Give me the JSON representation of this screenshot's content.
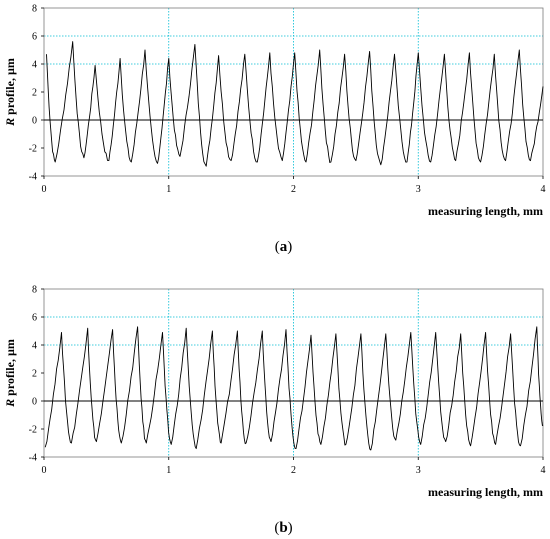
{
  "chart_data": [
    {
      "type": "line",
      "caption": "(a)",
      "xlabel": "measuring length, mm",
      "ylabel_italic": "R",
      "ylabel_rest": " profile, µm",
      "xlim": [
        0,
        4
      ],
      "ylim": [
        -4,
        8
      ],
      "xticks": [
        "0",
        "1",
        "2",
        "3",
        "4"
      ],
      "yticks": [
        "-4",
        "-2",
        "0",
        "2",
        "4",
        "6",
        "8"
      ],
      "grid": "dotted cyan at x = 1, 2, 3 and y = 4, 6",
      "colors": {
        "line": "#000000",
        "grid": "#00bcd4",
        "zero_line": "#000000"
      },
      "series": [
        {
          "peaks": [
            [
              0.02,
              4.7
            ],
            [
              0.23,
              5.6
            ],
            [
              0.41,
              3.9
            ],
            [
              0.61,
              4.4
            ],
            [
              0.81,
              5.0
            ],
            [
              1.0,
              4.4
            ],
            [
              1.21,
              5.4
            ],
            [
              1.4,
              4.6
            ],
            [
              1.61,
              4.7
            ],
            [
              1.81,
              4.8
            ],
            [
              2.01,
              4.8
            ],
            [
              2.21,
              5.0
            ],
            [
              2.41,
              4.7
            ],
            [
              2.61,
              4.9
            ],
            [
              2.81,
              4.7
            ],
            [
              3.0,
              4.8
            ],
            [
              3.21,
              4.7
            ],
            [
              3.41,
              4.8
            ],
            [
              3.61,
              4.7
            ],
            [
              3.81,
              5.0
            ],
            [
              4.0,
              2.4
            ]
          ],
          "valleys": [
            [
              0.09,
              -3.0
            ],
            [
              0.32,
              -2.7
            ],
            [
              0.52,
              -2.9
            ],
            [
              0.7,
              -3.0
            ],
            [
              0.91,
              -3.1
            ],
            [
              1.09,
              -2.6
            ],
            [
              1.3,
              -3.3
            ],
            [
              1.5,
              -2.9
            ],
            [
              1.71,
              -3.0
            ],
            [
              1.91,
              -2.9
            ],
            [
              2.1,
              -3.0
            ],
            [
              2.3,
              -3.0
            ],
            [
              2.5,
              -2.9
            ],
            [
              2.7,
              -3.2
            ],
            [
              2.91,
              -3.0
            ],
            [
              3.1,
              -3.0
            ],
            [
              3.3,
              -2.9
            ],
            [
              3.5,
              -3.0
            ],
            [
              3.7,
              -2.9
            ],
            [
              3.9,
              -2.9
            ]
          ]
        }
      ]
    },
    {
      "type": "line",
      "caption": "(b)",
      "xlabel": "measuring length, mm",
      "ylabel_italic": "R",
      "ylabel_rest": " profile, µm",
      "xlim": [
        0,
        4
      ],
      "ylim": [
        -4,
        8
      ],
      "xticks": [
        "0",
        "1",
        "2",
        "3",
        "4"
      ],
      "yticks": [
        "-4",
        "-2",
        "0",
        "2",
        "4",
        "6",
        "8"
      ],
      "grid": "dotted cyan at x = 1, 2, 3 and y = 4, 6",
      "colors": {
        "line": "#000000",
        "grid": "#00bcd4",
        "zero_line": "#000000"
      },
      "series": [
        {
          "peaks": [
            [
              0.14,
              4.9
            ],
            [
              0.35,
              5.2
            ],
            [
              0.55,
              5.1
            ],
            [
              0.75,
              5.3
            ],
            [
              0.95,
              4.9
            ],
            [
              1.14,
              5.2
            ],
            [
              1.35,
              5.0
            ],
            [
              1.55,
              5.0
            ],
            [
              1.75,
              5.0
            ],
            [
              1.94,
              5.1
            ],
            [
              2.14,
              4.7
            ],
            [
              2.34,
              4.8
            ],
            [
              2.54,
              4.8
            ],
            [
              2.74,
              4.8
            ],
            [
              2.94,
              4.9
            ],
            [
              3.14,
              4.9
            ],
            [
              3.34,
              4.8
            ],
            [
              3.54,
              4.9
            ],
            [
              3.74,
              4.8
            ],
            [
              3.95,
              5.3
            ]
          ],
          "valleys": [
            [
              0.01,
              -3.3
            ],
            [
              0.22,
              -3.0
            ],
            [
              0.42,
              -2.9
            ],
            [
              0.62,
              -3.0
            ],
            [
              0.82,
              -3.0
            ],
            [
              1.02,
              -3.1
            ],
            [
              1.22,
              -3.4
            ],
            [
              1.42,
              -3.0
            ],
            [
              1.62,
              -3.0
            ],
            [
              1.82,
              -2.9
            ],
            [
              2.02,
              -3.4
            ],
            [
              2.22,
              -3.1
            ],
            [
              2.42,
              -3.1
            ],
            [
              2.62,
              -3.5
            ],
            [
              2.82,
              -2.8
            ],
            [
              3.02,
              -3.1
            ],
            [
              3.22,
              -2.9
            ],
            [
              3.42,
              -3.2
            ],
            [
              3.62,
              -3.1
            ],
            [
              3.82,
              -3.2
            ],
            [
              4.0,
              -1.7
            ]
          ]
        }
      ]
    }
  ]
}
